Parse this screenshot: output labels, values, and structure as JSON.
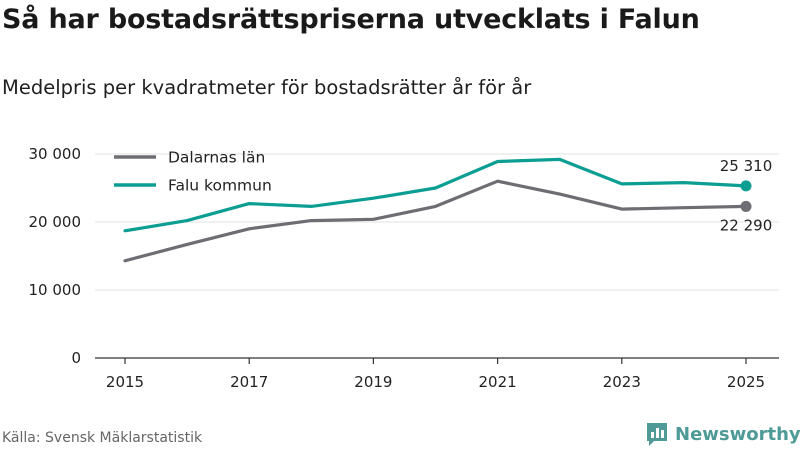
{
  "header": {
    "title": "Så har bostadsrättspriserna utvecklats i Falun",
    "subtitle": "Medelpris per kvadratmeter för bostadsrätter år för år"
  },
  "footer": {
    "source": "Källa: Svensk Mäklarstatistik",
    "brand": "Newsworthy",
    "brand_color": "#4d9a96",
    "brand_icon": "bar-chart-speech-bubble-icon"
  },
  "chart_data": {
    "type": "line",
    "title": "Så har bostadsrättspriserna utvecklats i Falun",
    "subtitle": "Medelpris per kvadratmeter för bostadsrätter år för år",
    "xlabel": "",
    "ylabel": "",
    "x": [
      2015,
      2016,
      2017,
      2018,
      2019,
      2020,
      2021,
      2022,
      2023,
      2024,
      2025
    ],
    "xlim": [
      2015,
      2025
    ],
    "ylim": [
      0,
      30000
    ],
    "x_ticks": [
      2015,
      2017,
      2019,
      2021,
      2023,
      2025
    ],
    "x_tick_labels": [
      "2015",
      "2017",
      "2019",
      "2021",
      "2023",
      "2025"
    ],
    "y_ticks": [
      0,
      10000,
      20000,
      30000
    ],
    "y_tick_labels": [
      "0",
      "10 000",
      "20 000",
      "30 000"
    ],
    "grid": true,
    "legend_position": "top-left",
    "series": [
      {
        "name": "Dalarnas län",
        "color": "#6e6d74",
        "values": [
          14300,
          16700,
          19000,
          20200,
          20400,
          22300,
          26000,
          24100,
          21900,
          22100,
          22290
        ],
        "end_label": "22 290"
      },
      {
        "name": "Falu kommun",
        "color": "#0c9e93",
        "values": [
          18700,
          20200,
          22700,
          22300,
          23500,
          25000,
          28900,
          29200,
          25600,
          25800,
          25310
        ],
        "end_label": "25 310"
      }
    ]
  }
}
